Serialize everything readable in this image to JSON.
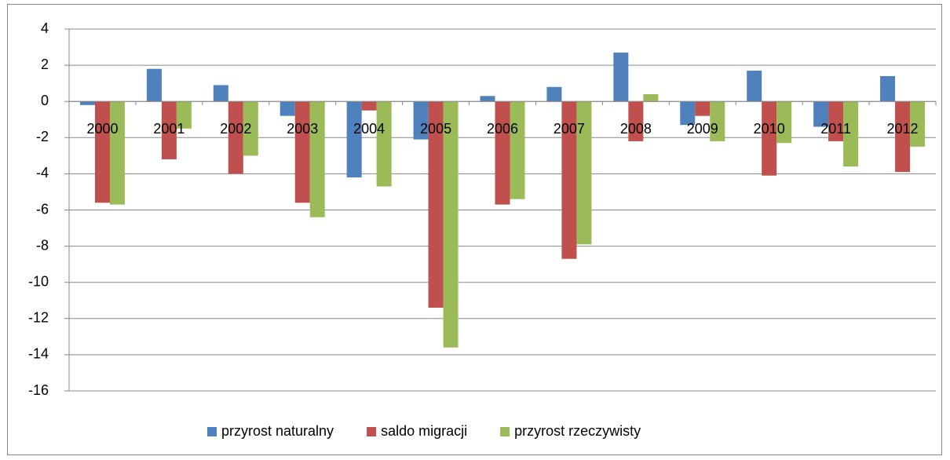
{
  "chart_data": {
    "type": "bar",
    "categories": [
      "2000",
      "2001",
      "2002",
      "2003",
      "2004",
      "2005",
      "2006",
      "2007",
      "2008",
      "2009",
      "2010",
      "2011",
      "2012"
    ],
    "series": [
      {
        "name": "przyrost naturalny",
        "color": "#4f81bd",
        "values": [
          -0.2,
          1.8,
          0.9,
          -0.8,
          -4.2,
          -2.1,
          0.3,
          0.8,
          2.7,
          -1.3,
          1.7,
          -1.4,
          1.4
        ]
      },
      {
        "name": "saldo migracji",
        "color": "#c0504d",
        "values": [
          -5.6,
          -3.2,
          -4.0,
          -5.6,
          -0.5,
          -11.4,
          -5.7,
          -8.7,
          -2.2,
          -0.8,
          -4.1,
          -2.2,
          -3.9
        ]
      },
      {
        "name": "przyrost rzeczywisty",
        "color": "#9bbb59",
        "values": [
          -5.7,
          -1.5,
          -3.0,
          -6.4,
          -4.7,
          -13.6,
          -5.4,
          -7.9,
          0.4,
          -2.2,
          -2.3,
          -3.6,
          -2.5
        ]
      }
    ],
    "ylim": [
      -16,
      4
    ],
    "yticks": [
      -16,
      -14,
      -12,
      -10,
      -8,
      -6,
      -4,
      -2,
      0,
      2,
      4
    ],
    "grid": true,
    "legend": "bottom"
  }
}
